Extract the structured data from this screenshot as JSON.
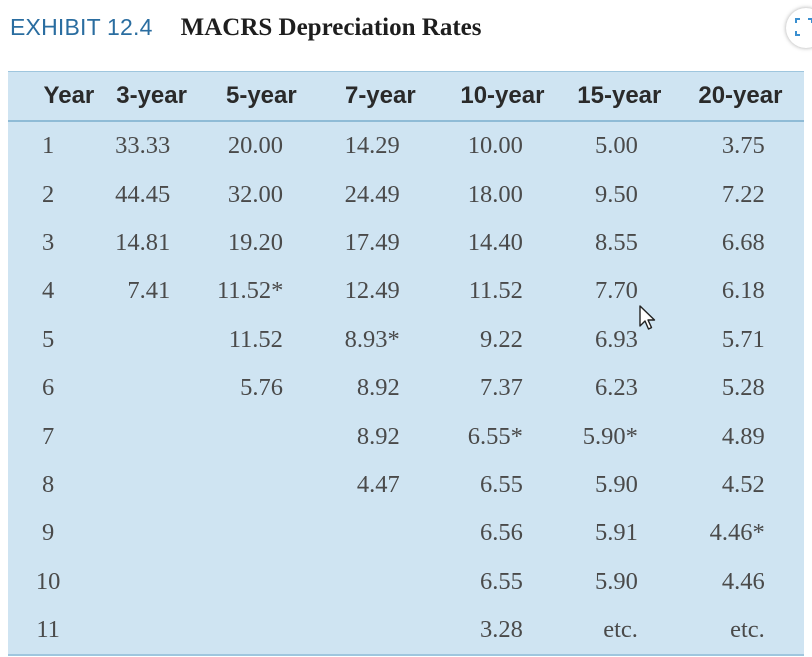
{
  "header": {
    "exhibit": "EXHIBIT 12.4",
    "title": "MACRS Depreciation Rates"
  },
  "table": {
    "columns": [
      "Year",
      "3-year",
      "5-year",
      "7-year",
      "10-year",
      "15-year",
      "20-year"
    ],
    "rows": [
      [
        "1",
        "33.33",
        "20.00",
        "14.29",
        "10.00",
        "5.00",
        "3.75"
      ],
      [
        "2",
        "44.45",
        "32.00",
        "24.49",
        "18.00",
        "9.50",
        "7.22"
      ],
      [
        "3",
        "14.81",
        "19.20",
        "17.49",
        "14.40",
        "8.55",
        "6.68"
      ],
      [
        "4",
        "7.41",
        "11.52*",
        "12.49",
        "11.52",
        "7.70",
        "6.18"
      ],
      [
        "5",
        "",
        "11.52",
        "8.93*",
        "9.22",
        "6.93",
        "5.71"
      ],
      [
        "6",
        "",
        "5.76",
        "8.92",
        "7.37",
        "6.23",
        "5.28"
      ],
      [
        "7",
        "",
        "",
        "8.92",
        "6.55*",
        "5.90*",
        "4.89"
      ],
      [
        "8",
        "",
        "",
        "4.47",
        "6.55",
        "5.90",
        "4.52"
      ],
      [
        "9",
        "",
        "",
        "",
        "6.56",
        "5.91",
        "4.46*"
      ],
      [
        "10",
        "",
        "",
        "",
        "6.55",
        "5.90",
        "4.46"
      ],
      [
        "11",
        "",
        "",
        "",
        "3.28",
        "etc.",
        "etc."
      ]
    ]
  },
  "icons": {
    "cursor": "mouse-pointer-icon",
    "corner": "screen-capture-icon"
  },
  "colors": {
    "panel_bg": "#cfe4f2",
    "exhibit_blue": "#2a6da0",
    "rule": "#8fbbd6"
  }
}
